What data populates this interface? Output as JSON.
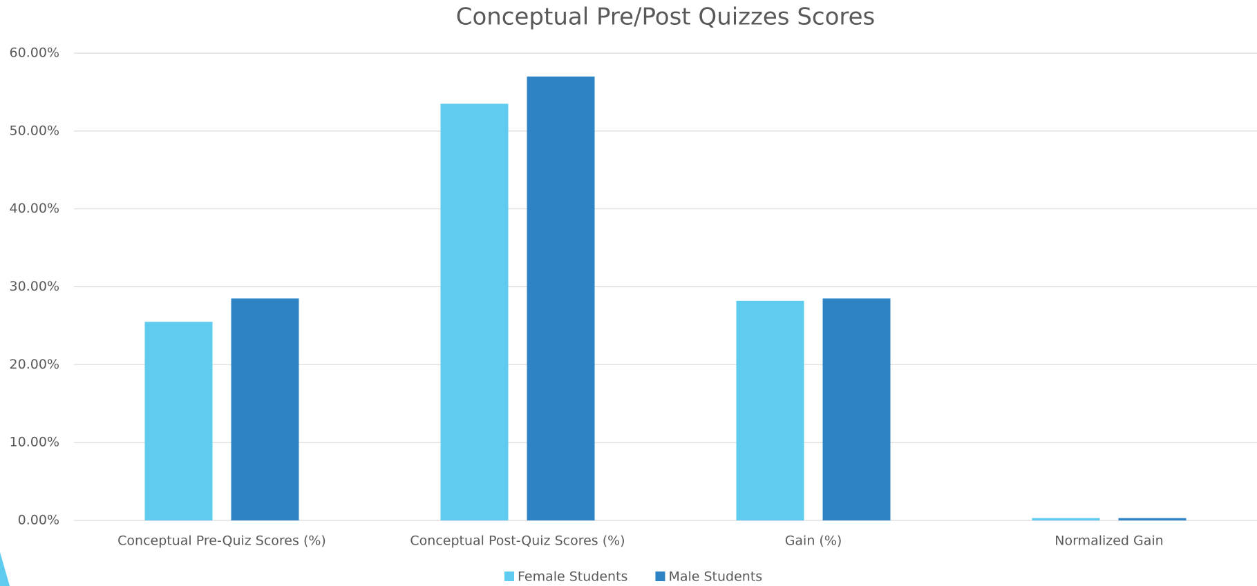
{
  "chart_data": {
    "type": "bar",
    "title": "Conceptual Pre/Post Quizzes Scores",
    "categories": [
      "Conceptual Pre-Quiz Scores (%)",
      "Conceptual Post-Quiz Scores (%)",
      "Gain (%)",
      "Normalized Gain"
    ],
    "series": [
      {
        "name": "Female Students",
        "color": "#5ecbef",
        "values": [
          25.5,
          53.5,
          28.2,
          0.3
        ]
      },
      {
        "name": "Male Students",
        "color": "#2e83c4",
        "values": [
          28.5,
          57.0,
          28.5,
          0.3
        ]
      }
    ],
    "ylim": [
      0,
      60
    ],
    "yticks": [
      {
        "value": 0,
        "label": "0.00%"
      },
      {
        "value": 10,
        "label": "10.00%"
      },
      {
        "value": 20,
        "label": "20.00%"
      },
      {
        "value": 30,
        "label": "30.00%"
      },
      {
        "value": 40,
        "label": "40.00%"
      },
      {
        "value": 50,
        "label": "50.00%"
      },
      {
        "value": 60,
        "label": "60.00%"
      }
    ],
    "grid": true,
    "legend": "bottom"
  }
}
